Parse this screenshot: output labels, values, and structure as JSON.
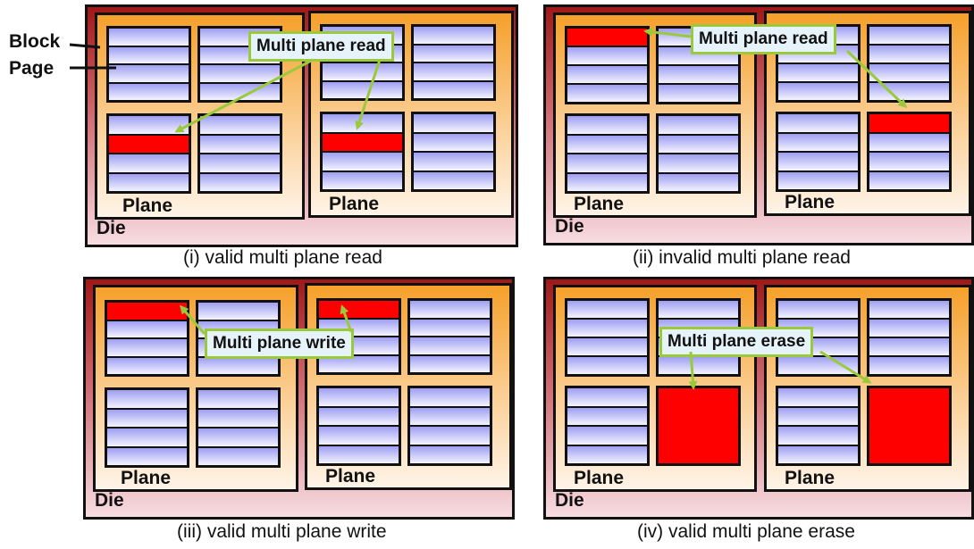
{
  "legend": {
    "block_label": "Block",
    "page_label": "Page"
  },
  "labels": {
    "die": "Die",
    "plane": "Plane"
  },
  "colors": {
    "die_edge": "#a01818",
    "plane_fill": "#f5a02a",
    "page_fill": "#9e9ef2",
    "highlight": "#ff0000",
    "callout_border": "#9ac93c",
    "callout_fill": "#e6f3fb",
    "arrow": "#9ac93c"
  },
  "panels": [
    {
      "caption": "(i) valid multi plane read",
      "callout": "Multi plane read",
      "highlighted_pages": [
        {
          "plane": 1,
          "block": 3,
          "page": 2
        },
        {
          "plane": 2,
          "block": 3,
          "page": 2
        }
      ],
      "erased_blocks": []
    },
    {
      "caption": "(ii) invalid multi plane read",
      "callout": "Multi plane read",
      "highlighted_pages": [
        {
          "plane": 1,
          "block": 1,
          "page": 1
        },
        {
          "plane": 2,
          "block": 4,
          "page": 1
        }
      ],
      "erased_blocks": []
    },
    {
      "caption": "(iii) valid multi plane write",
      "callout": "Multi plane write",
      "highlighted_pages": [
        {
          "plane": 1,
          "block": 1,
          "page": 1
        },
        {
          "plane": 2,
          "block": 1,
          "page": 1
        }
      ],
      "erased_blocks": []
    },
    {
      "caption": "(iv) valid multi plane erase",
      "callout": "Multi plane erase",
      "highlighted_pages": [],
      "erased_blocks": [
        {
          "plane": 1,
          "block": 4
        },
        {
          "plane": 2,
          "block": 4
        }
      ]
    }
  ]
}
